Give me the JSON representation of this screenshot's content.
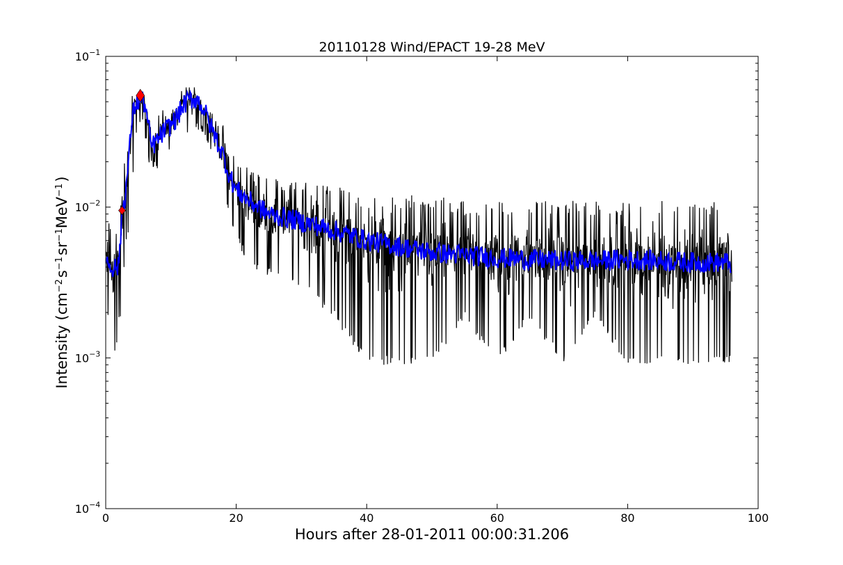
{
  "chart_data": {
    "type": "line",
    "title": "20110128 Wind/EPACT 19-28 MeV",
    "xlabel": "Hours after 28-01-2011 00:00:31.206",
    "ylabel": {
      "prefix": "Intensity (cm",
      "exp1": "−2",
      "s": "s",
      "exp2": "−1",
      "sr": "sr",
      "exp3": "−1",
      "mev": "MeV",
      "exp4": "−1",
      "suffix": ")"
    },
    "xlim": [
      0,
      100
    ],
    "ylim": [
      0.0001,
      0.1
    ],
    "yscale": "log",
    "grid": false,
    "x_ticks": [
      "0",
      "20",
      "40",
      "60",
      "80",
      "100"
    ],
    "y_ticks": [
      {
        "base": "10",
        "exp": "−4"
      },
      {
        "base": "10",
        "exp": "−3"
      },
      {
        "base": "10",
        "exp": "−2"
      },
      {
        "base": "10",
        "exp": "−1"
      }
    ],
    "series": [
      {
        "color": "#000000",
        "x_start": 0,
        "x_end": 96,
        "envelope": {
          "x": [
            0,
            1,
            1.5,
            2,
            2.5,
            3,
            3.5,
            4,
            4.5,
            5,
            5.5,
            6,
            6.5,
            7,
            8,
            9,
            10,
            11,
            12,
            13,
            14,
            15,
            16,
            17,
            18,
            19,
            20,
            22,
            25,
            30,
            35,
            40,
            45,
            50,
            55,
            60,
            65,
            70,
            75,
            80,
            85,
            90,
            95,
            96
          ],
          "low": [
            0.0018,
            0.0018,
            0.0009,
            0.0018,
            0.0018,
            0.006,
            0.006,
            0.012,
            0.025,
            0.035,
            0.035,
            0.03,
            0.02,
            0.018,
            0.018,
            0.02,
            0.024,
            0.026,
            0.028,
            0.03,
            0.032,
            0.03,
            0.025,
            0.018,
            0.012,
            0.008,
            0.006,
            0.004,
            0.0035,
            0.003,
            0.0018,
            0.0009,
            0.0009,
            0.0009,
            0.0018,
            0.0009,
            0.0018,
            0.0009,
            0.0018,
            0.0009,
            0.0009,
            0.0009,
            0.0009,
            0.0009
          ],
          "high": [
            0.008,
            0.008,
            0.007,
            0.008,
            0.02,
            0.021,
            0.03,
            0.055,
            0.058,
            0.066,
            0.06,
            0.058,
            0.045,
            0.04,
            0.042,
            0.045,
            0.05,
            0.055,
            0.062,
            0.066,
            0.066,
            0.06,
            0.05,
            0.042,
            0.035,
            0.025,
            0.021,
            0.018,
            0.016,
            0.015,
            0.014,
            0.012,
            0.012,
            0.012,
            0.011,
            0.011,
            0.011,
            0.011,
            0.011,
            0.011,
            0.011,
            0.011,
            0.011,
            0.011
          ]
        }
      },
      {
        "color": "#0000ff",
        "x": [
          0,
          0.5,
          1,
          1.5,
          2,
          2.5,
          3,
          3.5,
          4,
          4.5,
          5,
          5.5,
          6,
          6.5,
          7,
          8,
          9,
          10,
          11,
          12,
          13,
          14,
          15,
          16,
          17,
          18,
          19,
          20,
          22,
          25,
          30,
          35,
          40,
          45,
          50,
          55,
          60,
          65,
          70,
          75,
          80,
          85,
          90,
          95,
          96
        ],
        "values": [
          0.0045,
          0.0042,
          0.004,
          0.004,
          0.004,
          0.0095,
          0.012,
          0.02,
          0.038,
          0.048,
          0.05,
          0.052,
          0.048,
          0.035,
          0.025,
          0.028,
          0.032,
          0.035,
          0.04,
          0.048,
          0.052,
          0.052,
          0.045,
          0.035,
          0.028,
          0.022,
          0.016,
          0.013,
          0.011,
          0.009,
          0.008,
          0.007,
          0.006,
          0.0055,
          0.005,
          0.0048,
          0.0046,
          0.0045,
          0.0044,
          0.0044,
          0.0045,
          0.0044,
          0.0043,
          0.0043,
          0.0042
        ]
      }
    ],
    "markers": [
      {
        "x": 2.5,
        "y": 0.0095,
        "shape": "diamond",
        "color": "#ff0000",
        "size": "small"
      },
      {
        "x": 5.3,
        "y": 0.055,
        "shape": "diamond",
        "color": "#ff0000",
        "size": "large"
      }
    ]
  }
}
